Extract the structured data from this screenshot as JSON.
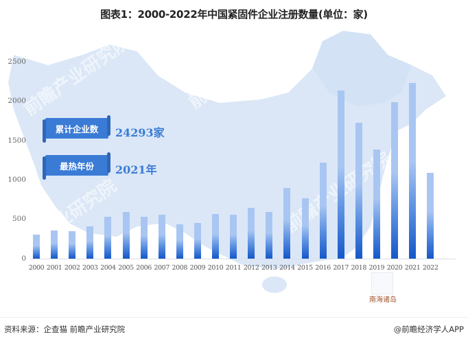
{
  "title": "图表1：2000-2022年中国紧固件企业注册数量(单位：家)",
  "kpis": [
    {
      "label": "累计企业数",
      "value": "24293家"
    },
    {
      "label": "最热年份",
      "value": "2021年"
    }
  ],
  "map_label": "南海诸岛",
  "watermark": "前瞻产业研究院",
  "footer": {
    "source": "资料来源：企查猫 前瞻产业研究院",
    "credit": "@前瞻经济学人APP"
  },
  "colors": {
    "bar_top": "#a9c6f2",
    "bar_bottom": "#1457c9",
    "banner": "#3a7bd5",
    "map": "#dbe7f7"
  },
  "chart_data": {
    "type": "bar",
    "title": "图表1：2000-2022年中国紧固件企业注册数量(单位：家)",
    "xlabel": "",
    "ylabel": "",
    "ylim": [
      0,
      2500
    ],
    "yticks": [
      "0",
      "500",
      "1000",
      "1500",
      "2000",
      "2500"
    ],
    "grid": false,
    "legend": "none",
    "categories": [
      "2000",
      "2001",
      "2002",
      "2003",
      "2004",
      "2005",
      "2006",
      "2007",
      "2008",
      "2009",
      "2010",
      "2011",
      "2012",
      "2013",
      "2014",
      "2015",
      "2016",
      "2017",
      "2018",
      "2019",
      "2020",
      "2021",
      "2022"
    ],
    "values": [
      305,
      355,
      350,
      410,
      530,
      590,
      530,
      555,
      435,
      455,
      565,
      555,
      645,
      590,
      895,
      765,
      1220,
      2135,
      1725,
      1385,
      1985,
      2230,
      1090
    ]
  }
}
